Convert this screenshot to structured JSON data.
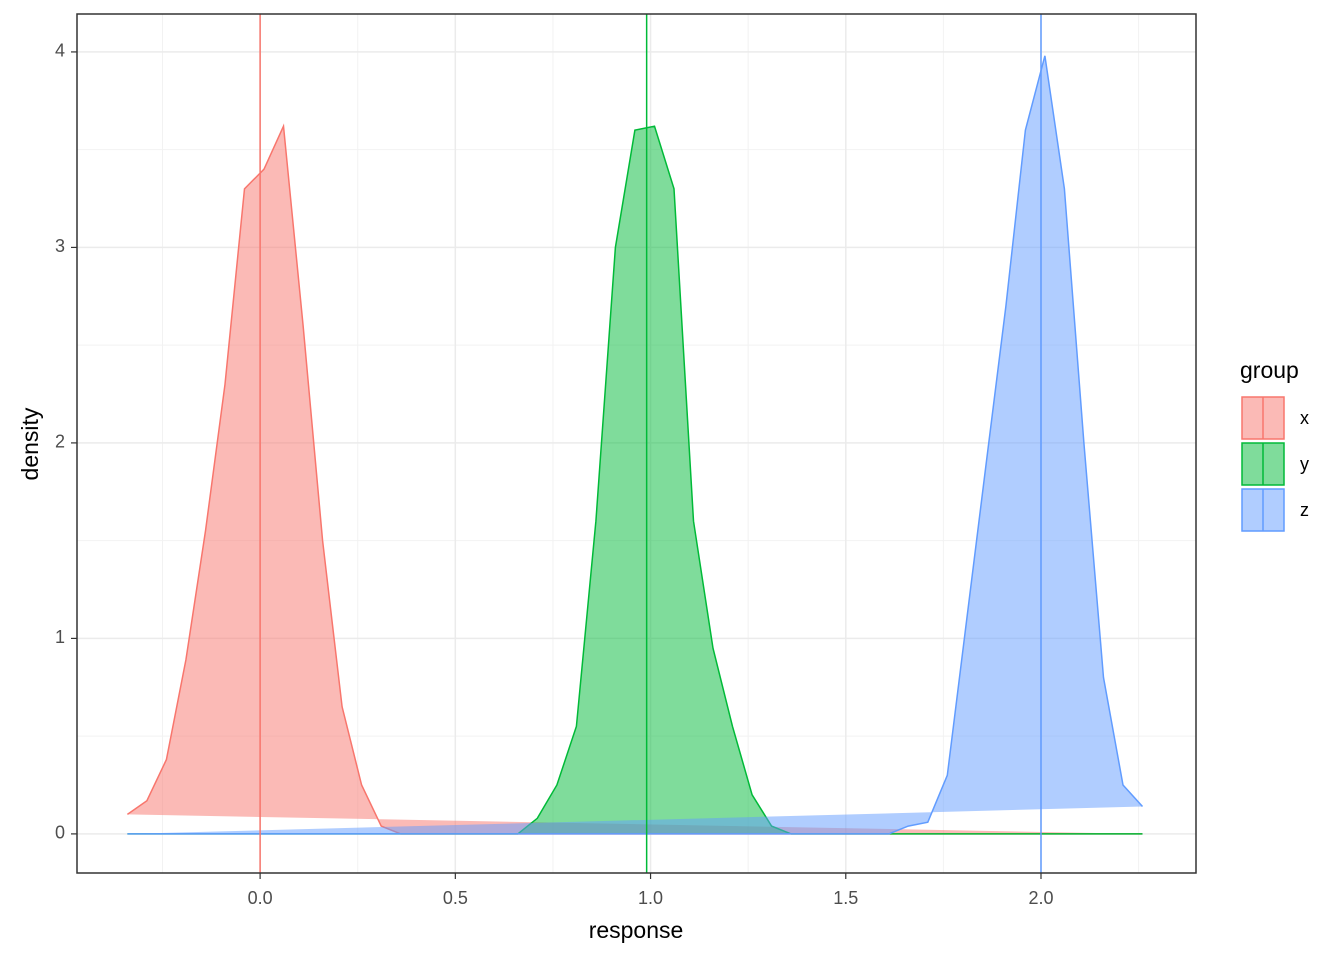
{
  "chart_data": {
    "type": "density",
    "xlabel": "response",
    "ylabel": "density",
    "legend_title": "group",
    "x": [
      -0.34,
      -0.29,
      -0.24,
      -0.19,
      -0.14,
      -0.09,
      -0.04,
      0.01,
      0.06,
      0.11,
      0.16,
      0.21,
      0.26,
      0.31,
      0.36,
      0.41,
      0.46,
      0.51,
      0.56,
      0.61,
      0.66,
      0.71,
      0.76,
      0.81,
      0.86,
      0.91,
      0.96,
      1.01,
      1.06,
      1.11,
      1.16,
      1.21,
      1.26,
      1.31,
      1.36,
      1.41,
      1.46,
      1.51,
      1.56,
      1.61,
      1.66,
      1.71,
      1.76,
      1.81,
      1.86,
      1.91,
      1.96,
      2.01,
      2.06,
      2.11,
      2.16,
      2.21,
      2.26
    ],
    "series": [
      {
        "name": "x",
        "color": "#F8766D",
        "mean": 0.0,
        "values": [
          0.1,
          0.17,
          0.38,
          0.89,
          1.55,
          2.3,
          3.3,
          3.4,
          3.62,
          2.6,
          1.5,
          0.65,
          0.25,
          0.04,
          0,
          0,
          0,
          0,
          0,
          0,
          0,
          0,
          0,
          0,
          0,
          0,
          0,
          0,
          0,
          0,
          0,
          0,
          0,
          0,
          0,
          0,
          0,
          0,
          0,
          0,
          0,
          0,
          0,
          0,
          0,
          0,
          0,
          0,
          0,
          0,
          0,
          0,
          0
        ]
      },
      {
        "name": "y",
        "color": "#00BA38",
        "mean": 0.99,
        "values": [
          0,
          0,
          0,
          0,
          0,
          0,
          0,
          0,
          0,
          0,
          0,
          0,
          0,
          0,
          0,
          0,
          0,
          0,
          0,
          0,
          0,
          0.08,
          0.25,
          0.55,
          1.6,
          3.0,
          3.6,
          3.62,
          3.3,
          1.6,
          0.95,
          0.55,
          0.2,
          0.04,
          0,
          0,
          0,
          0,
          0,
          0,
          0,
          0,
          0,
          0,
          0,
          0,
          0,
          0,
          0,
          0,
          0,
          0,
          0
        ]
      },
      {
        "name": "z",
        "color": "#619CFF",
        "mean": 2.0,
        "values": [
          0,
          0,
          0,
          0,
          0,
          0,
          0,
          0,
          0,
          0,
          0,
          0,
          0,
          0,
          0,
          0,
          0,
          0,
          0,
          0,
          0,
          0,
          0,
          0,
          0,
          0,
          0,
          0,
          0,
          0,
          0,
          0,
          0,
          0,
          0,
          0,
          0,
          0,
          0,
          0,
          0.04,
          0.06,
          0.3,
          1.1,
          1.9,
          2.7,
          3.6,
          3.98,
          3.3,
          2.0,
          0.8,
          0.25,
          0.14
        ]
      }
    ],
    "xlim": [
      -0.469,
      2.397
    ],
    "ylim": [
      -0.2,
      4.194
    ],
    "xticks": [
      {
        "value": 0,
        "label": "0.0"
      },
      0.5,
      {
        "value": 1,
        "label": "1.0"
      },
      1.5,
      {
        "value": 2,
        "label": "2.0"
      }
    ],
    "yticks": [
      0,
      1,
      2,
      3,
      4
    ],
    "xminor": [
      -0.25,
      0.25,
      0.75,
      1.25,
      1.75,
      2.25
    ],
    "yminor": [
      0.5,
      1.5,
      2.5,
      3.5
    ],
    "grid": true
  }
}
